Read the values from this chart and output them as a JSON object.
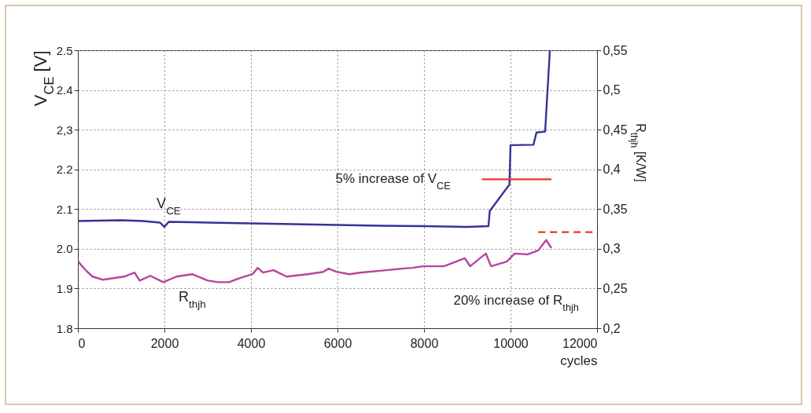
{
  "chart_data": {
    "type": "line",
    "xlabel": "cycles",
    "ylabel": "V$_{CE}$ [V]",
    "y2label": "R$_{thjh}$ [K/W]",
    "xlim": [
      0,
      12000
    ],
    "xticks": [
      0,
      2000,
      4000,
      6000,
      8000,
      10000,
      12000
    ],
    "ylim": [
      1.8,
      2.5
    ],
    "yticks": [
      1.8,
      1.9,
      {
        "value": 2.0,
        "label": "2.0"
      },
      2.1,
      2.2,
      {
        "value": 2.3,
        "label": "2,3"
      },
      2.4,
      2.5
    ],
    "y2lim": [
      0.2,
      0.55
    ],
    "y2ticks": [
      {
        "value": 0.2,
        "label": "0,2"
      },
      {
        "value": 0.25,
        "label": "0,25"
      },
      {
        "value": 0.3,
        "label": "0,3"
      },
      {
        "value": 0.35,
        "label": "0,35"
      },
      {
        "value": 0.4,
        "label": "0,4"
      },
      {
        "value": 0.45,
        "label": "0,45"
      },
      {
        "value": 0.5,
        "label": "0,5"
      },
      {
        "value": 0.55,
        "label": "0,55"
      }
    ],
    "grid": true,
    "series": [
      {
        "name": "V$_{CE}$",
        "color": "#33349a",
        "axis": "y",
        "x": [
          0,
          500,
          1000,
          1500,
          1900,
          2000,
          2100,
          3000,
          4000,
          5000,
          6000,
          7000,
          8000,
          9000,
          9490,
          9520,
          9975,
          10000,
          10530,
          10600,
          10800,
          10910
        ],
        "values": [
          2.07,
          2.071,
          2.072,
          2.07,
          2.066,
          2.055,
          2.068,
          2.066,
          2.064,
          2.062,
          2.06,
          2.058,
          2.057,
          2.055,
          2.057,
          2.095,
          2.162,
          2.261,
          2.262,
          2.293,
          2.295,
          2.5
        ]
      },
      {
        "name": "R$_{thjh}$",
        "color": "#b8439e",
        "axis": "y2",
        "x": [
          0,
          67,
          218,
          339,
          582,
          1067,
          1309,
          1430,
          1673,
          1976,
          2279,
          2642,
          3006,
          3248,
          3491,
          3733,
          4036,
          4158,
          4279,
          4521,
          4824,
          5309,
          5673,
          5794,
          5976,
          6279,
          6521,
          7127,
          7491,
          7733,
          7976,
          8461,
          8945,
          9067,
          9430,
          9552,
          9915,
          10097,
          10400,
          10642,
          10824,
          10945
        ],
        "values": [
          0.285,
          0.28,
          0.271,
          0.265,
          0.261,
          0.265,
          0.27,
          0.26,
          0.266,
          0.258,
          0.265,
          0.268,
          0.26,
          0.258,
          0.258,
          0.263,
          0.268,
          0.276,
          0.27,
          0.273,
          0.265,
          0.268,
          0.271,
          0.275,
          0.271,
          0.268,
          0.27,
          0.273,
          0.275,
          0.276,
          0.278,
          0.278,
          0.288,
          0.278,
          0.294,
          0.278,
          0.284,
          0.294,
          0.293,
          0.298,
          0.311,
          0.301
        ]
      },
      {
        "color": "#e8372a",
        "axis": "y",
        "line_style": "solid",
        "x": [
          9340,
          10945
        ],
        "values": [
          2.175,
          2.175
        ]
      },
      {
        "color": "#e8372a",
        "axis": "y2",
        "line_style": "dashed",
        "x": [
          10640,
          12000
        ],
        "values": [
          0.321,
          0.321
        ]
      }
    ],
    "annotations": [
      {
        "text": "5% increase of V$_{CE}$",
        "x": 9340,
        "y": 2.175
      },
      "20% increase of R$_{thjh}$"
    ]
  }
}
